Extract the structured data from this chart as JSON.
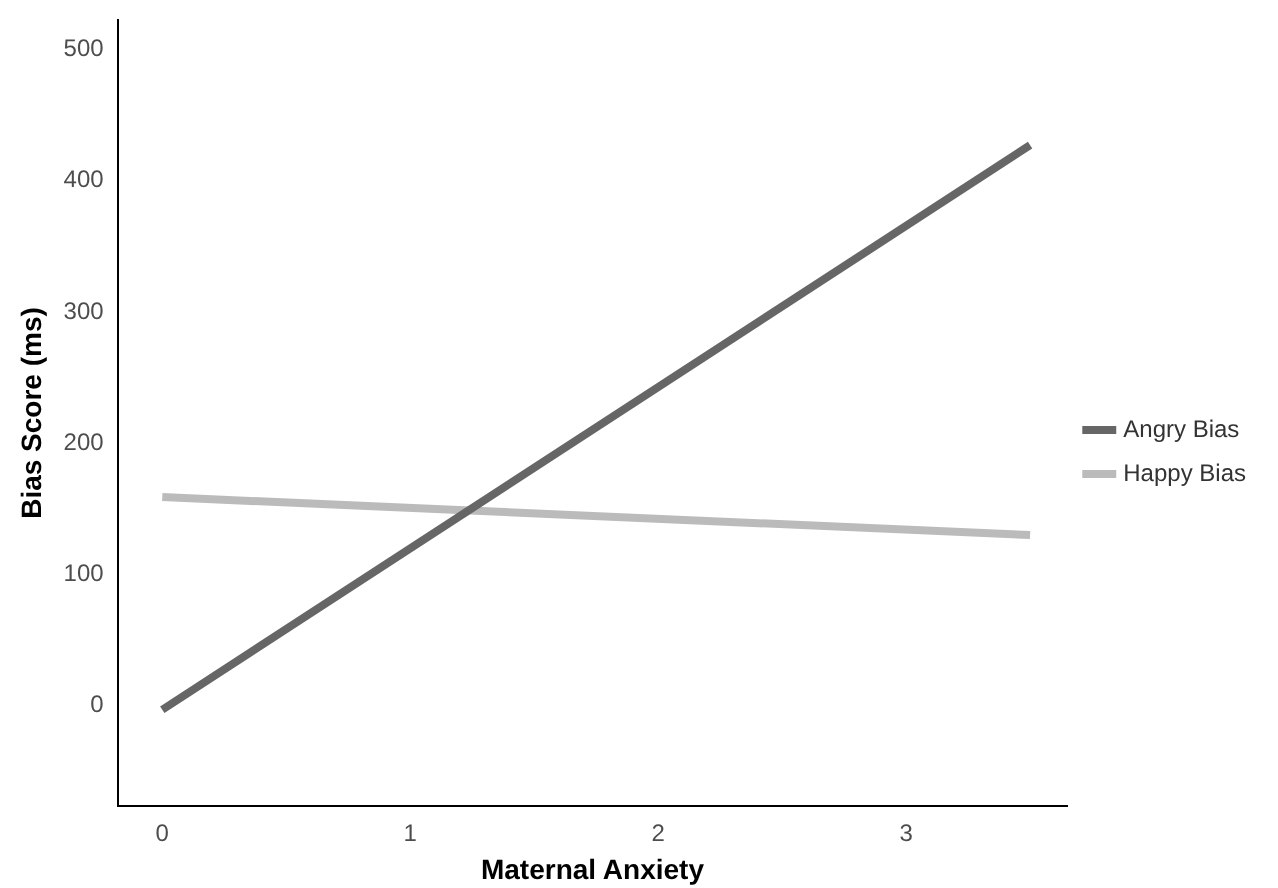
{
  "chart_data": {
    "type": "line",
    "xlabel": "Maternal Anxiety",
    "ylabel": "Bias Score (ms)",
    "x": [
      0,
      3.5
    ],
    "series": [
      {
        "name": "Angry Bias",
        "color": "#666666",
        "values": [
          -3,
          427
        ]
      },
      {
        "name": "Happy Bias",
        "color": "#bbbbbb",
        "values": [
          159,
          130
        ]
      }
    ],
    "xlim": [
      -0.18,
      3.65
    ],
    "xticks": [
      0,
      1,
      2,
      3
    ],
    "ylim": [
      -76,
      522
    ],
    "yticks": [
      0,
      100,
      200,
      300,
      400,
      500
    ],
    "grid": false,
    "legend": "right",
    "marker": "none",
    "line_style": "solid"
  }
}
